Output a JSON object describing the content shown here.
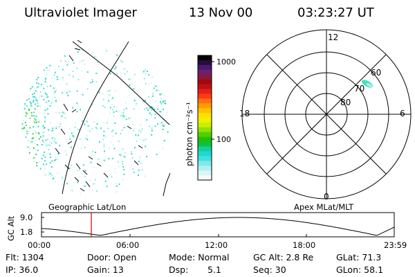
{
  "header": {
    "title": "Ultraviolet Imager",
    "date": "13 Nov 00",
    "time": "03:23:27 UT"
  },
  "colorbar": {
    "label": "photon cm⁻²s⁻¹",
    "tick_top": "1000",
    "tick_mid": "100",
    "colors": [
      "#000000",
      "#2b0a3d",
      "#4b1a6b",
      "#6b2070",
      "#8a1a3a",
      "#a00a10",
      "#c01010",
      "#e02020",
      "#ff3a10",
      "#ff7010",
      "#ff9a00",
      "#ffc000",
      "#ffe000",
      "#f0f000",
      "#c8f000",
      "#90e000",
      "#50d000",
      "#20c000",
      "#10c040",
      "#10d0a0",
      "#20d8d0",
      "#40e0e0",
      "#80e8e8",
      "#b0f0f0",
      "#d8f6f6",
      "#f4fbfb"
    ]
  },
  "polar": {
    "mlt_top": "12",
    "mlt_left": "18",
    "mlt_right": "6",
    "mlt_bottom": "0",
    "lat_60": "60",
    "lat_70": "70",
    "lat_80": "80"
  },
  "timeline": {
    "label_geo": "Geographic Lat/Lon",
    "label_apex": "Apex MLat/MLT",
    "y_axis_label": "GC Alt",
    "y_top": "9.0",
    "y_bottom": "1.8",
    "x_ticks": [
      "00:00",
      "06:00",
      "12:00",
      "18:00",
      "23:59"
    ]
  },
  "info": {
    "flt": "Flt: 1304",
    "ip": "IP: 36.0",
    "door": "Door: Open",
    "gain": "Gain: 13",
    "mode": "Mode: Normal",
    "dsp_label": "Dsp:",
    "dsp_value": "5.1",
    "gc_alt": "GC Alt: 2.8 Re",
    "seq": "Seq: 30",
    "glat": "GLat: 71.3",
    "glon": "GLon: 58.1"
  }
}
